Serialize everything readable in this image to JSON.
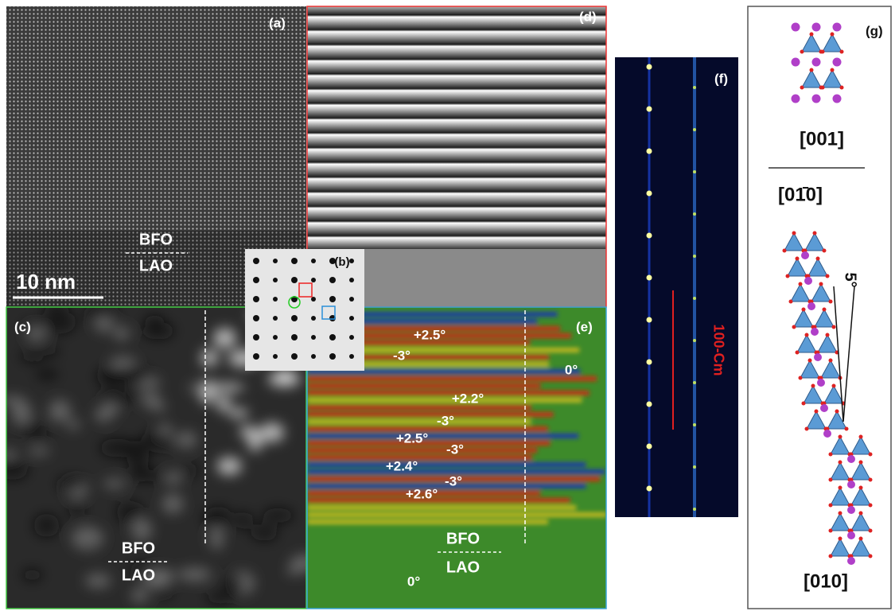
{
  "panels": {
    "a": {
      "label": "(a)",
      "interface_top": "BFO",
      "interface_bottom": "LAO",
      "scale_bar": "10 nm"
    },
    "b": {
      "label": "(b)"
    },
    "c": {
      "label": "(c)",
      "interface_top": "BFO",
      "interface_bottom": "LAO"
    },
    "d": {
      "label": "(d)"
    },
    "e": {
      "label": "(e)",
      "annotations": [
        "+2.5°",
        "-3°",
        "+2.2°",
        "-3°",
        "+2.5°",
        "-3°",
        "+2.4°",
        "-3°",
        "+2.6°",
        "0°",
        "0°"
      ],
      "interface_top": "BFO",
      "interface_bottom": "LAO"
    },
    "f": {
      "label": "(f)",
      "arrow_label": "100-Cm"
    },
    "g": {
      "label": "(g)",
      "top_direction": "[001]",
      "middle_direction": "[01̄0]",
      "tilt": "5°",
      "bottom_direction": "[010]"
    }
  }
}
